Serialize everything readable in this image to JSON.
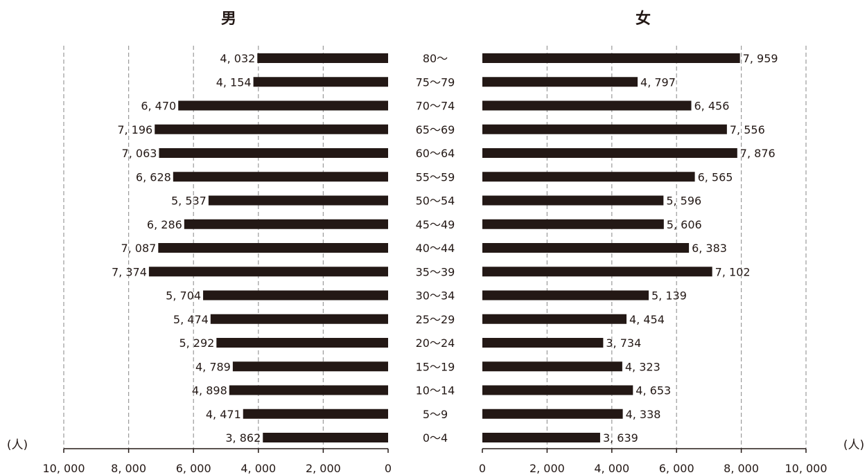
{
  "chart_data": {
    "type": "bar",
    "orientation": "horizontal-population-pyramid",
    "categories": [
      "80～",
      "75～79",
      "70～74",
      "65～69",
      "60～64",
      "55～59",
      "50～54",
      "45～49",
      "40～44",
      "35～39",
      "30～34",
      "25～29",
      "20～24",
      "15～19",
      "10～14",
      "5～9",
      "0～4"
    ],
    "series": [
      {
        "name": "男",
        "values": [
          4032,
          4154,
          6470,
          7196,
          7063,
          6628,
          5537,
          6286,
          7087,
          7374,
          5704,
          5474,
          5292,
          4789,
          4898,
          4471,
          3862
        ],
        "value_labels": [
          "4, 032",
          "4, 154",
          "6, 470",
          "7, 196",
          "7, 063",
          "6, 628",
          "5, 537",
          "6, 286",
          "7, 087",
          "7, 374",
          "5, 704",
          "5, 474",
          "5, 292",
          "4, 789",
          "4, 898",
          "4, 471",
          "3, 862"
        ]
      },
      {
        "name": "女",
        "values": [
          7959,
          4797,
          6456,
          7556,
          7876,
          6565,
          5596,
          5606,
          6383,
          7102,
          5139,
          4454,
          3734,
          4323,
          4653,
          4338,
          3639
        ],
        "value_labels": [
          "7, 959",
          "4, 797",
          "6, 456",
          "7, 556",
          "7, 876",
          "6, 565",
          "5, 596",
          "5, 606",
          "6, 383",
          "7, 102",
          "5, 139",
          "4, 454",
          "3, 734",
          "4, 323",
          "4, 653",
          "4, 338",
          "3, 639"
        ]
      }
    ],
    "xlim": [
      0,
      10000
    ],
    "ticks": [
      10000,
      8000,
      6000,
      4000,
      2000,
      0
    ],
    "tick_labels_left": [
      "10, 000",
      "8, 000",
      "6, 000",
      "4, 000",
      "2, 000",
      "0"
    ],
    "tick_labels_right": [
      "0",
      "2, 000",
      "4, 000",
      "6, 000",
      "8, 000",
      "10, 000"
    ],
    "unit_label": "(人)",
    "grid": true,
    "bar_color": "#231815",
    "grid_color": "#9a9a9a"
  }
}
